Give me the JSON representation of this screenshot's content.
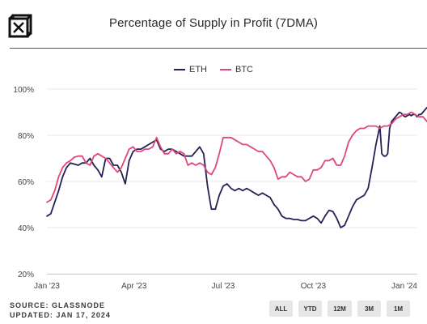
{
  "title": "Percentage of Supply in Profit (7DMA)",
  "footer": {
    "source": "SOURCE: GLASSNODE",
    "updated": "UPDATED: JAN 17, 2024"
  },
  "range_buttons": [
    "ALL",
    "YTD",
    "12M",
    "3M",
    "1M"
  ],
  "colors": {
    "eth": "#232155",
    "btc": "#e0467a",
    "rule": "#6c3aa5",
    "grid": "#e8e8e8"
  },
  "chart_data": {
    "type": "line",
    "legend": {
      "placement": "top-center",
      "entries": [
        "ETH",
        "BTC"
      ]
    },
    "x_ticks": [
      {
        "label": "Jan '23",
        "t": 0
      },
      {
        "label": "Apr '23",
        "t": 89
      },
      {
        "label": "Jul '23",
        "t": 180
      },
      {
        "label": "Oct '23",
        "t": 272
      },
      {
        "label": "Jan '24",
        "t": 365
      }
    ],
    "y_ticks": [
      "20%",
      "40%",
      "60%",
      "80%",
      "100%"
    ],
    "ylim": [
      20,
      100
    ],
    "grid": "horizontal",
    "series": [
      {
        "name": "ETH",
        "points": [
          [
            0,
            45
          ],
          [
            4,
            46
          ],
          [
            8,
            51
          ],
          [
            12,
            56
          ],
          [
            16,
            62
          ],
          [
            20,
            66
          ],
          [
            24,
            68
          ],
          [
            28,
            67.5
          ],
          [
            32,
            67
          ],
          [
            36,
            68
          ],
          [
            40,
            68
          ],
          [
            44,
            70
          ],
          [
            48,
            67
          ],
          [
            52,
            65
          ],
          [
            56,
            62
          ],
          [
            60,
            70
          ],
          [
            64,
            70
          ],
          [
            68,
            67
          ],
          [
            72,
            67
          ],
          [
            76,
            64
          ],
          [
            80,
            59
          ],
          [
            84,
            69
          ],
          [
            88,
            73
          ],
          [
            92,
            74
          ],
          [
            96,
            74
          ],
          [
            100,
            75
          ],
          [
            104,
            76
          ],
          [
            108,
            77
          ],
          [
            112,
            78
          ],
          [
            116,
            74
          ],
          [
            120,
            73
          ],
          [
            124,
            74
          ],
          [
            128,
            74
          ],
          [
            132,
            73
          ],
          [
            136,
            72
          ],
          [
            140,
            71
          ],
          [
            144,
            71
          ],
          [
            148,
            71
          ],
          [
            152,
            73
          ],
          [
            156,
            75
          ],
          [
            160,
            72
          ],
          [
            164,
            58
          ],
          [
            168,
            48
          ],
          [
            172,
            48
          ],
          [
            176,
            54
          ],
          [
            180,
            58
          ],
          [
            184,
            59
          ],
          [
            188,
            57
          ],
          [
            192,
            56
          ],
          [
            196,
            57
          ],
          [
            200,
            56
          ],
          [
            204,
            57
          ],
          [
            208,
            56
          ],
          [
            212,
            55
          ],
          [
            216,
            54
          ],
          [
            220,
            55
          ],
          [
            224,
            54
          ],
          [
            228,
            53
          ],
          [
            232,
            50
          ],
          [
            236,
            48
          ],
          [
            240,
            45
          ],
          [
            244,
            44
          ],
          [
            248,
            44
          ],
          [
            252,
            43.5
          ],
          [
            256,
            43.5
          ],
          [
            260,
            43
          ],
          [
            264,
            43
          ],
          [
            268,
            44
          ],
          [
            272,
            45
          ],
          [
            276,
            44
          ],
          [
            280,
            42
          ],
          [
            284,
            45
          ],
          [
            288,
            47.5
          ],
          [
            292,
            47
          ],
          [
            296,
            44
          ],
          [
            300,
            40
          ],
          [
            304,
            41
          ],
          [
            308,
            45
          ],
          [
            312,
            49
          ],
          [
            316,
            52
          ],
          [
            320,
            53
          ],
          [
            324,
            54
          ],
          [
            328,
            57
          ],
          [
            332,
            66
          ],
          [
            336,
            76
          ],
          [
            340,
            84
          ],
          [
            342,
            72
          ],
          [
            344,
            71
          ],
          [
            346,
            71
          ],
          [
            348,
            72
          ],
          [
            350,
            83
          ],
          [
            352,
            86
          ],
          [
            354,
            87
          ],
          [
            356,
            88
          ],
          [
            358,
            89
          ],
          [
            360,
            90
          ],
          [
            362,
            89.5
          ],
          [
            364,
            88.5
          ],
          [
            366,
            88
          ],
          [
            368,
            88.5
          ],
          [
            370,
            89
          ],
          [
            372,
            88.5
          ],
          [
            374,
            89
          ],
          [
            376,
            89
          ],
          [
            378,
            88
          ],
          [
            380,
            89
          ],
          [
            382,
            89
          ],
          [
            384,
            90
          ],
          [
            386,
            91
          ],
          [
            388,
            92
          ]
        ]
      },
      {
        "name": "BTC",
        "points": [
          [
            0,
            51
          ],
          [
            4,
            52
          ],
          [
            8,
            56
          ],
          [
            12,
            62
          ],
          [
            16,
            66
          ],
          [
            20,
            68
          ],
          [
            24,
            69
          ],
          [
            28,
            70.5
          ],
          [
            32,
            71
          ],
          [
            36,
            71
          ],
          [
            40,
            68
          ],
          [
            44,
            67
          ],
          [
            48,
            71
          ],
          [
            52,
            72
          ],
          [
            56,
            71
          ],
          [
            60,
            70
          ],
          [
            64,
            68
          ],
          [
            68,
            66
          ],
          [
            72,
            64
          ],
          [
            76,
            66
          ],
          [
            80,
            70
          ],
          [
            84,
            74
          ],
          [
            88,
            75
          ],
          [
            92,
            73
          ],
          [
            96,
            73
          ],
          [
            100,
            74
          ],
          [
            104,
            74
          ],
          [
            108,
            75
          ],
          [
            112,
            79
          ],
          [
            116,
            75
          ],
          [
            120,
            72
          ],
          [
            124,
            72
          ],
          [
            128,
            74
          ],
          [
            132,
            72
          ],
          [
            136,
            73
          ],
          [
            140,
            72
          ],
          [
            144,
            67
          ],
          [
            148,
            68
          ],
          [
            152,
            67
          ],
          [
            156,
            68
          ],
          [
            160,
            67
          ],
          [
            164,
            64
          ],
          [
            168,
            63
          ],
          [
            172,
            66
          ],
          [
            176,
            72
          ],
          [
            180,
            79
          ],
          [
            184,
            79
          ],
          [
            188,
            79
          ],
          [
            192,
            78
          ],
          [
            196,
            77
          ],
          [
            200,
            76
          ],
          [
            204,
            76
          ],
          [
            208,
            75
          ],
          [
            212,
            74
          ],
          [
            216,
            73
          ],
          [
            220,
            73
          ],
          [
            224,
            71
          ],
          [
            228,
            69
          ],
          [
            232,
            66
          ],
          [
            236,
            61
          ],
          [
            240,
            62
          ],
          [
            244,
            62
          ],
          [
            248,
            64
          ],
          [
            252,
            63
          ],
          [
            256,
            62
          ],
          [
            260,
            62
          ],
          [
            264,
            60
          ],
          [
            268,
            61
          ],
          [
            272,
            65
          ],
          [
            276,
            65
          ],
          [
            280,
            66
          ],
          [
            284,
            69
          ],
          [
            288,
            69
          ],
          [
            292,
            70
          ],
          [
            296,
            67
          ],
          [
            300,
            67
          ],
          [
            304,
            71
          ],
          [
            308,
            77
          ],
          [
            312,
            80
          ],
          [
            316,
            82
          ],
          [
            320,
            83
          ],
          [
            324,
            83
          ],
          [
            328,
            84
          ],
          [
            332,
            84
          ],
          [
            336,
            84
          ],
          [
            340,
            83
          ],
          [
            344,
            84
          ],
          [
            348,
            84
          ],
          [
            352,
            85
          ],
          [
            356,
            87
          ],
          [
            360,
            88
          ],
          [
            364,
            89
          ],
          [
            368,
            89
          ],
          [
            372,
            90
          ],
          [
            376,
            89
          ],
          [
            380,
            88
          ],
          [
            384,
            88
          ],
          [
            388,
            86
          ]
        ]
      }
    ]
  }
}
